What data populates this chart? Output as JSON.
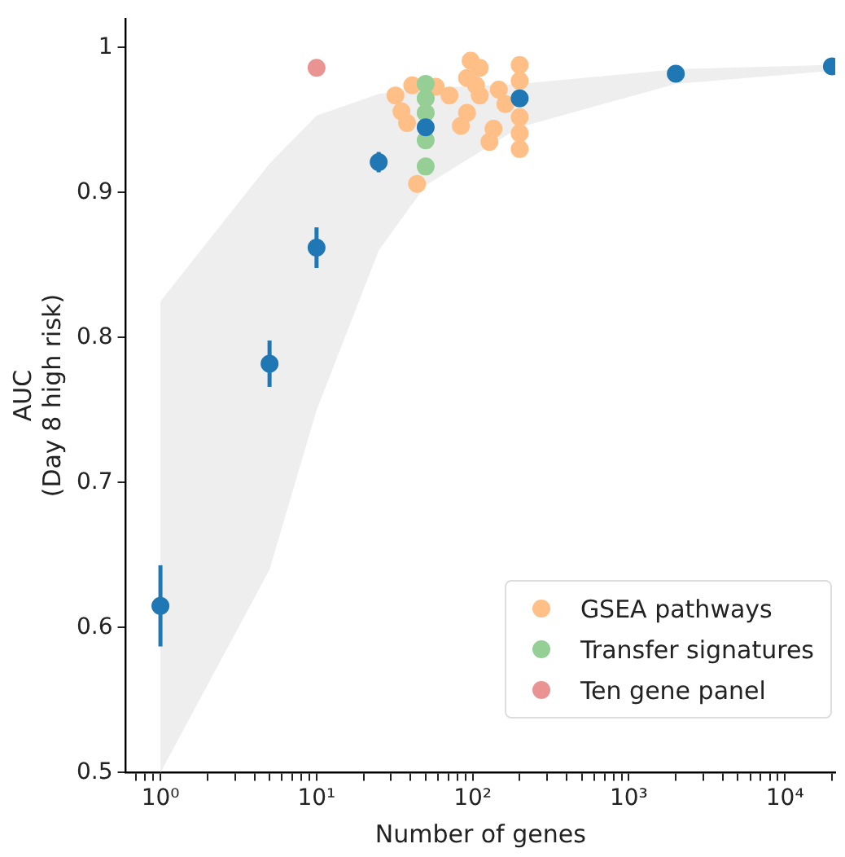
{
  "chart_data": {
    "type": "scatter",
    "xlabel": "Number of genes",
    "ylabel": "AUC\n(Day 8 high risk)",
    "log": "x",
    "grid": false,
    "legend": "bottom right",
    "marker": "circle",
    "xlim": [
      0.63,
      21000
    ],
    "ylim": [
      0.5,
      1.02
    ],
    "xticks": [
      {
        "value": 0.7,
        "label": null
      },
      {
        "value": 0.8,
        "label": null
      },
      {
        "value": 0.9,
        "label": null
      },
      {
        "value": 1,
        "label": "10⁰"
      },
      {
        "value": 2,
        "label": null
      },
      {
        "value": 3,
        "label": null
      },
      {
        "value": 4,
        "label": null
      },
      {
        "value": 5,
        "label": null
      },
      {
        "value": 6,
        "label": null
      },
      {
        "value": 7,
        "label": null
      },
      {
        "value": 8,
        "label": null
      },
      {
        "value": 9,
        "label": null
      },
      {
        "value": 10,
        "label": "10¹"
      },
      {
        "value": 20,
        "label": null
      },
      {
        "value": 30,
        "label": null
      },
      {
        "value": 40,
        "label": null
      },
      {
        "value": 50,
        "label": null
      },
      {
        "value": 60,
        "label": null
      },
      {
        "value": 70,
        "label": null
      },
      {
        "value": 80,
        "label": null
      },
      {
        "value": 90,
        "label": null
      },
      {
        "value": 100,
        "label": "10²"
      },
      {
        "value": 200,
        "label": null
      },
      {
        "value": 300,
        "label": null
      },
      {
        "value": 400,
        "label": null
      },
      {
        "value": 500,
        "label": null
      },
      {
        "value": 600,
        "label": null
      },
      {
        "value": 700,
        "label": null
      },
      {
        "value": 800,
        "label": null
      },
      {
        "value": 900,
        "label": null
      },
      {
        "value": 1000,
        "label": "10³"
      },
      {
        "value": 2000,
        "label": null
      },
      {
        "value": 3000,
        "label": null
      },
      {
        "value": 4000,
        "label": null
      },
      {
        "value": 5000,
        "label": null
      },
      {
        "value": 6000,
        "label": null
      },
      {
        "value": 7000,
        "label": null
      },
      {
        "value": 8000,
        "label": null
      },
      {
        "value": 9000,
        "label": null
      },
      {
        "value": 10000,
        "label": "10⁴"
      },
      {
        "value": 20000,
        "label": null
      }
    ],
    "yticks": [
      0.5,
      0.6,
      0.7,
      0.8,
      0.9,
      1.0
    ],
    "series": [
      {
        "color": "#1f77b4",
        "x": [
          1,
          5,
          10,
          25,
          50,
          200,
          2000,
          20000
        ],
        "values": [
          0.615,
          0.782,
          0.862,
          0.921,
          0.945,
          0.965,
          0.982,
          0.987
        ],
        "errors": [
          0.028,
          0.016,
          0.014,
          0.007,
          null,
          null,
          null,
          null
        ],
        "lower": [
          0.5,
          0.64,
          0.75,
          0.86,
          0.905,
          0.945,
          0.975,
          0.984
        ],
        "upper": [
          0.825,
          0.92,
          0.953,
          0.968,
          0.972,
          0.975,
          0.985,
          0.988
        ]
      },
      {
        "name": "GSEA pathways",
        "color": "#ffbf86",
        "x": [
          32,
          41,
          35,
          38,
          44,
          58,
          71,
          84,
          92,
          97,
          111,
          92,
          105,
          111,
          136,
          128,
          147,
          162,
          200,
          200,
          200,
          200,
          200
        ],
        "values": [
          0.967,
          0.974,
          0.956,
          0.948,
          0.906,
          0.973,
          0.967,
          0.946,
          0.955,
          0.991,
          0.986,
          0.979,
          0.974,
          0.967,
          0.944,
          0.935,
          0.971,
          0.961,
          0.988,
          0.977,
          0.952,
          0.941,
          0.93
        ]
      },
      {
        "name": "Transfer signatures",
        "color": "#95cf95",
        "x": [
          50,
          50,
          50,
          50,
          50
        ],
        "values": [
          0.975,
          0.965,
          0.955,
          0.936,
          0.918
        ]
      },
      {
        "name": "Ten gene panel",
        "color": "#ea9393",
        "x": [
          10
        ],
        "values": [
          0.986
        ]
      }
    ]
  }
}
